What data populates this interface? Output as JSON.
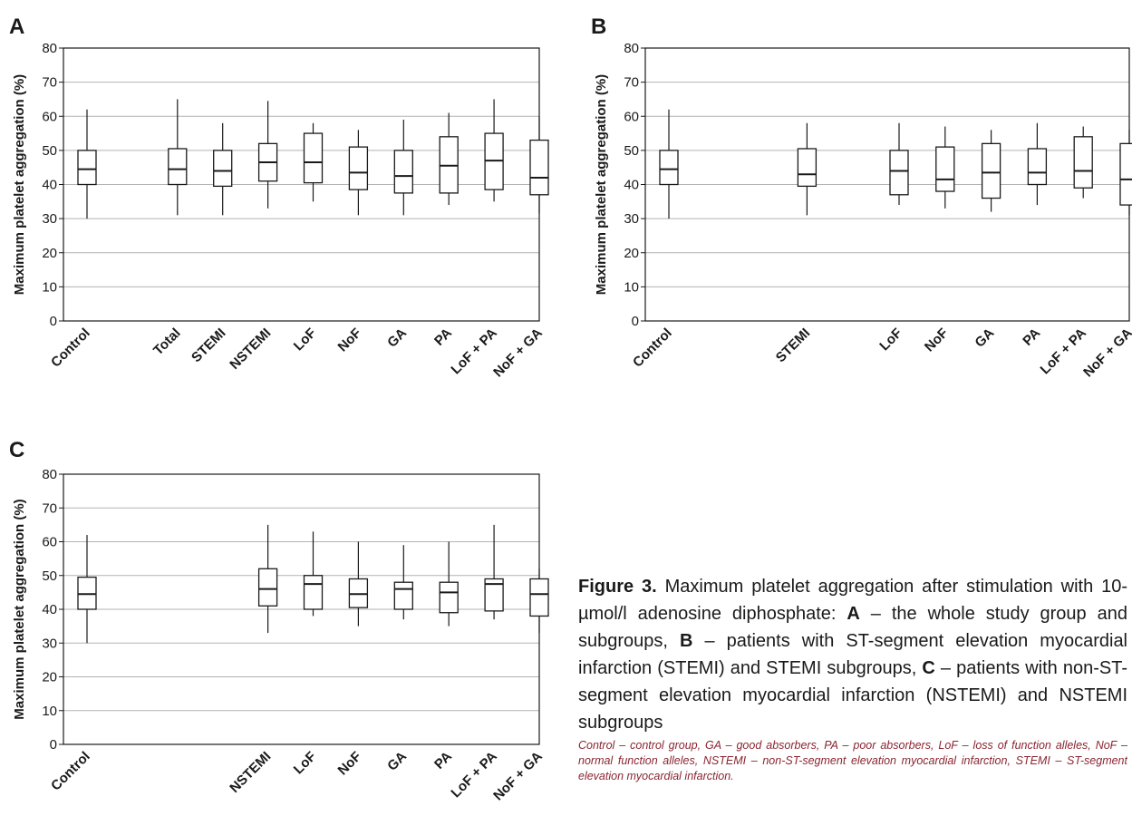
{
  "chart_data": [
    {
      "panel": "A",
      "type": "box",
      "ylabel": "Maximum platelet aggregation (%)",
      "ylim": [
        0,
        80
      ],
      "yticks": [
        "0",
        "10",
        "20",
        "30",
        "40",
        "50",
        "60",
        "70",
        "80"
      ],
      "grid": true,
      "n_slots": 10,
      "boxes": [
        {
          "label": "Control",
          "slot": 0,
          "min": 30,
          "q1": 40,
          "median": 44.5,
          "q3": 50,
          "max": 62
        },
        {
          "label": "Total",
          "slot": 2,
          "min": 31,
          "q1": 40,
          "median": 44.5,
          "q3": 50.5,
          "max": 65
        },
        {
          "label": "STEMI",
          "slot": 3,
          "min": 31,
          "q1": 39.5,
          "median": 44,
          "q3": 50,
          "max": 58
        },
        {
          "label": "NSTEMI",
          "slot": 4,
          "min": 33,
          "q1": 41,
          "median": 46.5,
          "q3": 52,
          "max": 64.5
        },
        {
          "label": "LoF",
          "slot": 5,
          "min": 35,
          "q1": 40.5,
          "median": 46.5,
          "q3": 55,
          "max": 58
        },
        {
          "label": "NoF",
          "slot": 6,
          "min": 31,
          "q1": 38.5,
          "median": 43.5,
          "q3": 51,
          "max": 56
        },
        {
          "label": "GA",
          "slot": 7,
          "min": 31,
          "q1": 37.5,
          "median": 42.5,
          "q3": 50,
          "max": 59
        },
        {
          "label": "PA",
          "slot": 8,
          "min": 34,
          "q1": 37.5,
          "median": 45.5,
          "q3": 54,
          "max": 61
        },
        {
          "label": "LoF + PA",
          "slot": 9,
          "min": 35,
          "q1": 38.5,
          "median": 47,
          "q3": 55,
          "max": 65
        },
        {
          "label": "NoF + GA",
          "slot": 10,
          "min": 31.5,
          "q1": 37,
          "median": 42,
          "q3": 53,
          "max": 60
        }
      ]
    },
    {
      "panel": "B",
      "type": "box",
      "ylabel": "Maximum platelet aggregation (%)",
      "ylim": [
        0,
        80
      ],
      "yticks": [
        "0",
        "10",
        "20",
        "30",
        "40",
        "50",
        "60",
        "70",
        "80"
      ],
      "grid": true,
      "n_slots": 10,
      "boxes": [
        {
          "label": "Control",
          "slot": 0,
          "min": 30,
          "q1": 40,
          "median": 44.5,
          "q3": 50,
          "max": 62
        },
        {
          "label": "STEMI",
          "slot": 3,
          "min": 31,
          "q1": 39.5,
          "median": 43,
          "q3": 50.5,
          "max": 58
        },
        {
          "label": "LoF",
          "slot": 5,
          "min": 34,
          "q1": 37,
          "median": 44,
          "q3": 50,
          "max": 58
        },
        {
          "label": "NoF",
          "slot": 6,
          "min": 33,
          "q1": 38,
          "median": 41.5,
          "q3": 51,
          "max": 57
        },
        {
          "label": "GA",
          "slot": 7,
          "min": 32,
          "q1": 36,
          "median": 43.5,
          "q3": 52,
          "max": 56
        },
        {
          "label": "PA",
          "slot": 8,
          "min": 34,
          "q1": 40,
          "median": 43.5,
          "q3": 50.5,
          "max": 58
        },
        {
          "label": "LoF + PA",
          "slot": 9,
          "min": 36,
          "q1": 39,
          "median": 44,
          "q3": 54,
          "max": 57
        },
        {
          "label": "NoF + GA",
          "slot": 10,
          "min": 31,
          "q1": 34,
          "median": 41.5,
          "q3": 52,
          "max": 56
        }
      ]
    },
    {
      "panel": "C",
      "type": "box",
      "ylabel": "Maximum platelet aggregation (%)",
      "ylim": [
        0,
        80
      ],
      "yticks": [
        "0",
        "10",
        "20",
        "30",
        "40",
        "50",
        "60",
        "70",
        "80"
      ],
      "grid": true,
      "n_slots": 10,
      "boxes": [
        {
          "label": "Control",
          "slot": 0,
          "min": 30,
          "q1": 40,
          "median": 44.5,
          "q3": 49.5,
          "max": 62
        },
        {
          "label": "NSTEMI",
          "slot": 4,
          "min": 33,
          "q1": 41,
          "median": 46,
          "q3": 52,
          "max": 65
        },
        {
          "label": "LoF",
          "slot": 5,
          "min": 38,
          "q1": 40,
          "median": 47.5,
          "q3": 50,
          "max": 63
        },
        {
          "label": "NoF",
          "slot": 6,
          "min": 35,
          "q1": 40.5,
          "median": 44.5,
          "q3": 49,
          "max": 60
        },
        {
          "label": "GA",
          "slot": 7,
          "min": 37,
          "q1": 40,
          "median": 46,
          "q3": 48,
          "max": 59
        },
        {
          "label": "PA",
          "slot": 8,
          "min": 35,
          "q1": 39,
          "median": 45,
          "q3": 48,
          "max": 60
        },
        {
          "label": "LoF + PA",
          "slot": 9,
          "min": 37,
          "q1": 39.5,
          "median": 47.5,
          "q3": 49,
          "max": 65
        },
        {
          "label": "NoF + GA",
          "slot": 10,
          "min": 33,
          "q1": 38,
          "median": 44.5,
          "q3": 49,
          "max": 52
        }
      ]
    }
  ],
  "caption": {
    "label": "Figure 3.",
    "intro": "Maximum platelet aggregation after stimulation with 10-µmol/l adenosine diphosphate:",
    "items": [
      {
        "letter": "A",
        "text": "– the whole study group and subgroups,"
      },
      {
        "letter": "B",
        "text": "– patients with ST-segment elevation myocardial infarction (STEMI) and STEMI subgroups,"
      },
      {
        "letter": "C",
        "text": "– patients with non-ST-segment elevation myocardial infarction (NSTEMI) and NSTEMI subgroups"
      }
    ],
    "note": "Control – control group, GA – good absorbers, PA – poor absorbers, LoF – loss of function alleles, NoF – normal function alleles, NSTEMI – non-ST-segment elevation myocardial infarction, STEMI – ST-segment elevation myocardial infarction."
  },
  "colors": {
    "grid": "#b3b3b3",
    "box_stroke": "#1a1a1a",
    "note": "#8a2530"
  }
}
